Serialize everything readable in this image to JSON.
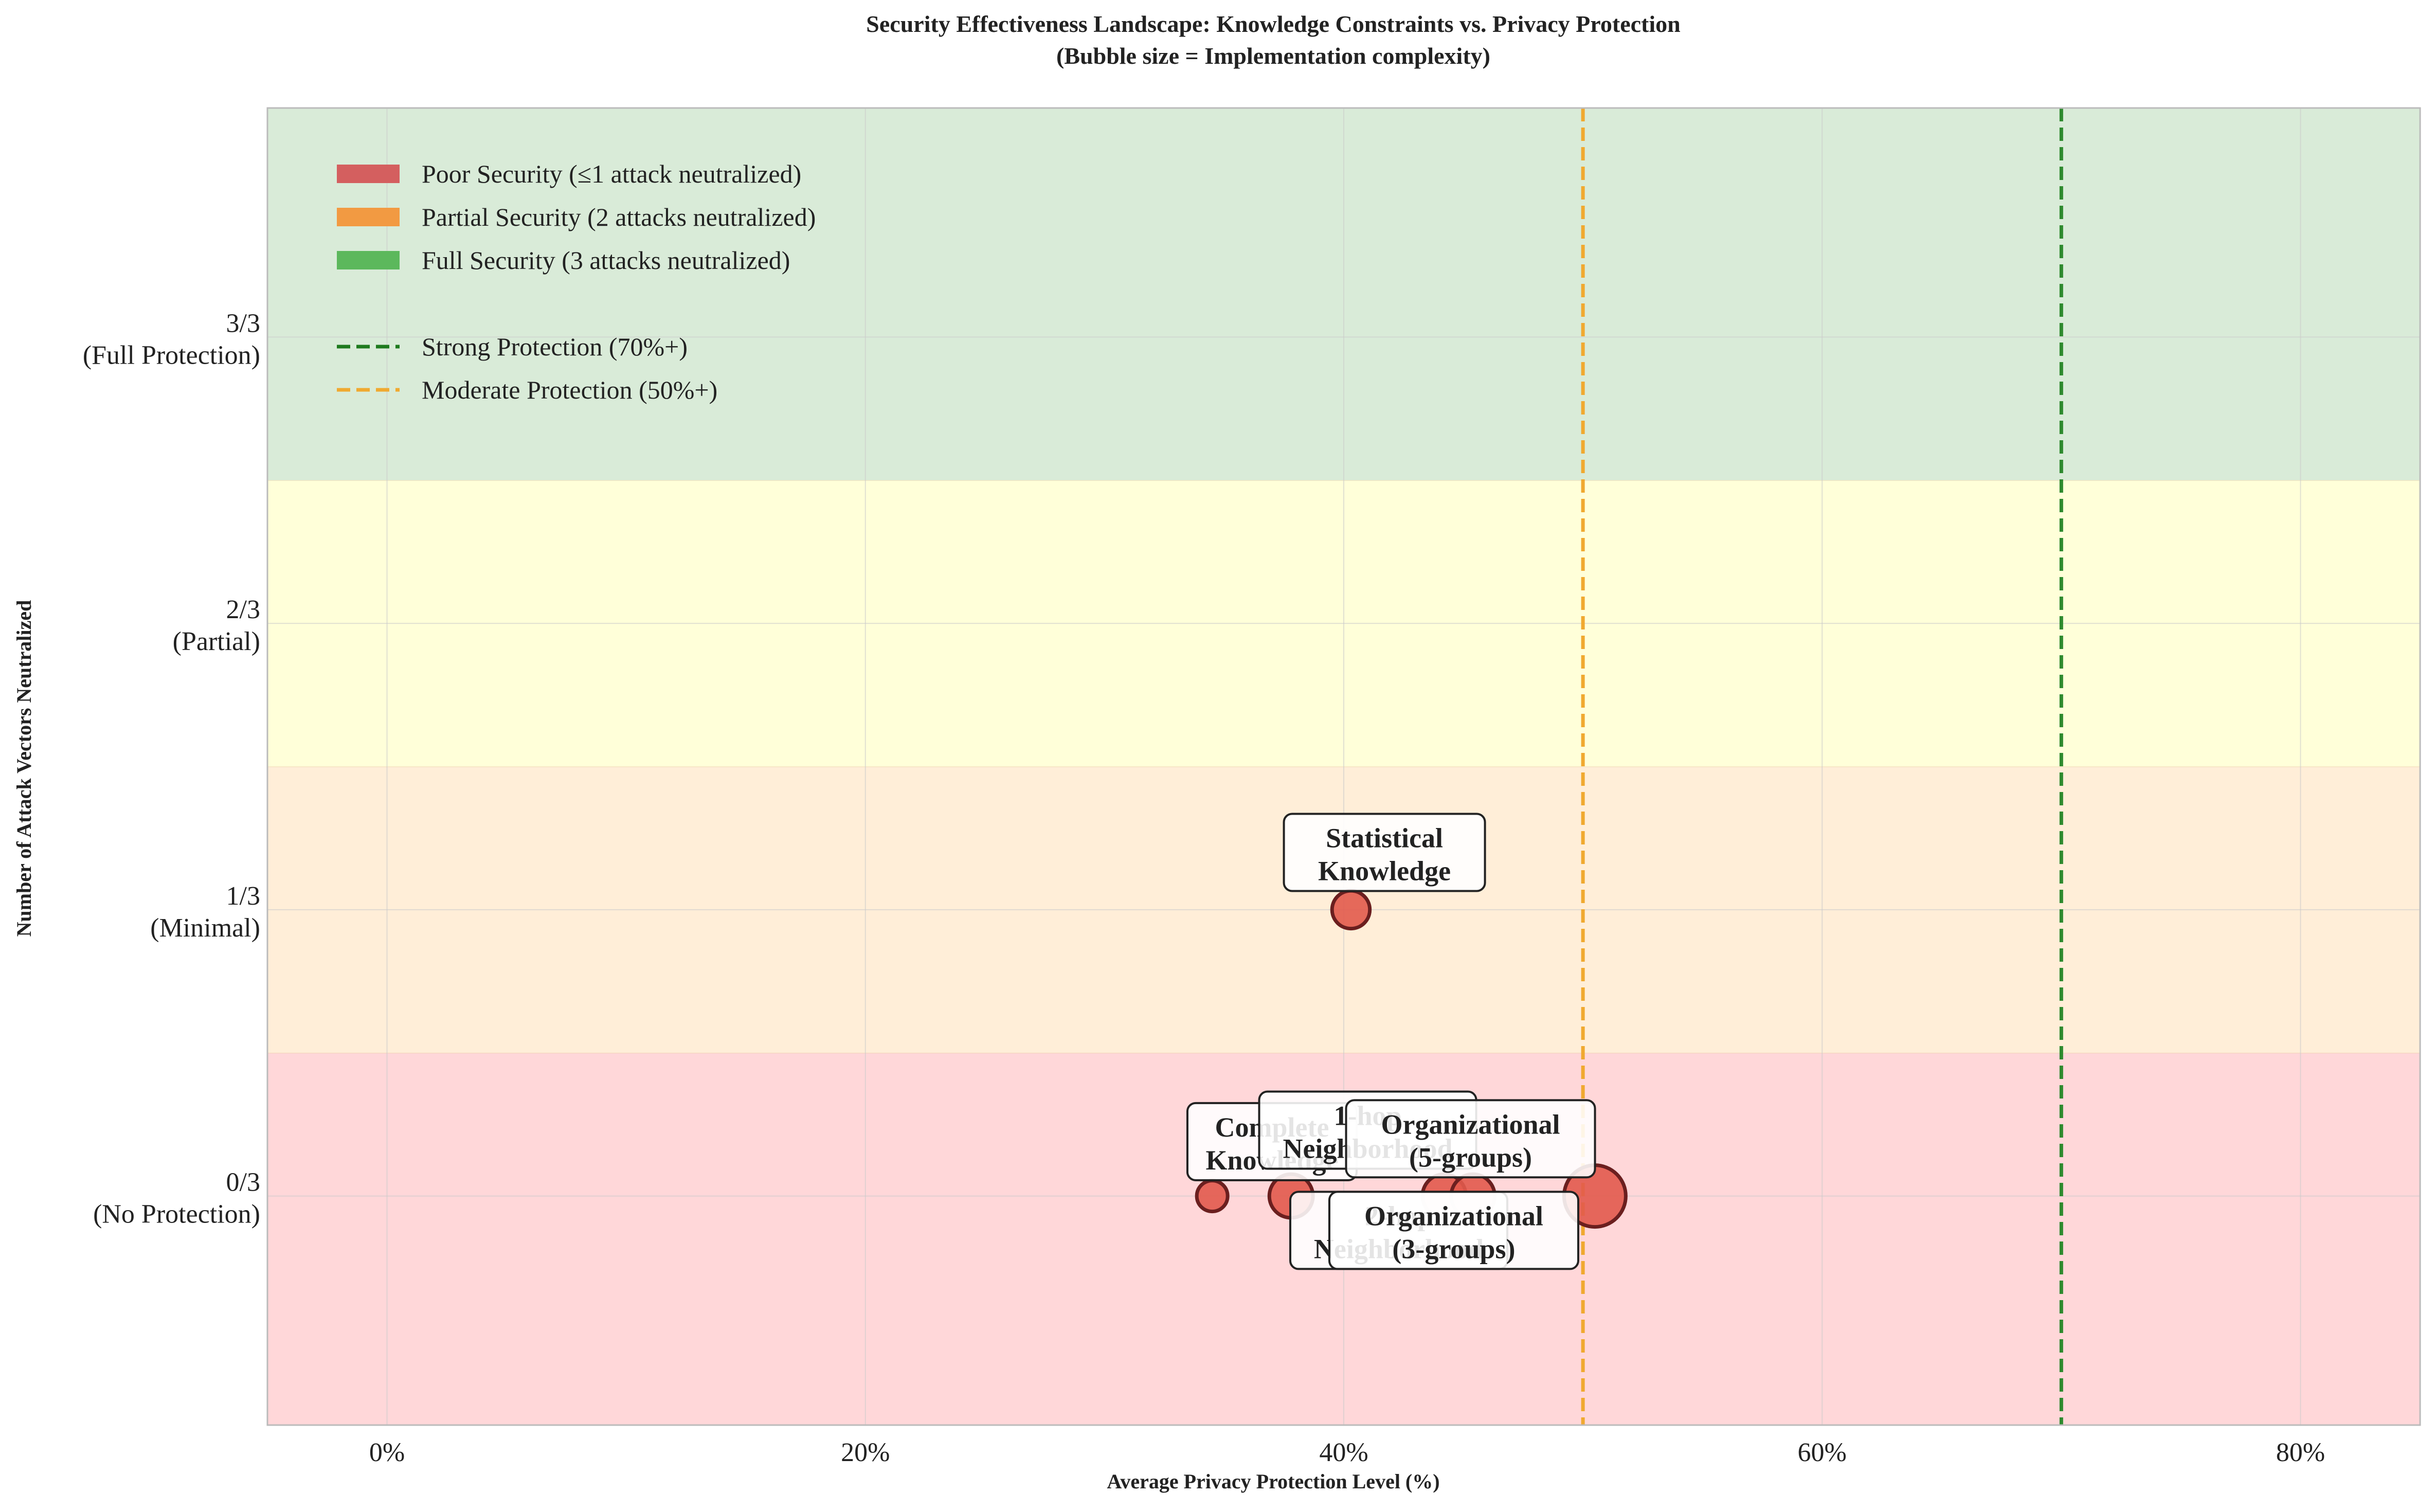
{
  "chart_data": {
    "type": "scatter",
    "title": "Security Effectiveness Landscape: Knowledge Constraints vs. Privacy Protection",
    "subtitle": "(Bubble size = Implementation complexity)",
    "xlabel": "Average Privacy Protection Level (%)",
    "ylabel": "Number of Attack Vectors Neutralized",
    "xlim": [
      -5,
      85
    ],
    "ylim": [
      -0.8,
      3.8
    ],
    "x_ticks": [
      0,
      20,
      40,
      60,
      80
    ],
    "x_tick_labels": [
      "0%",
      "20%",
      "40%",
      "60%",
      "80%"
    ],
    "y_ticks": [
      0,
      1,
      2,
      3
    ],
    "y_tick_labels": [
      [
        "0/3",
        "(No Protection)"
      ],
      [
        "1/3",
        "(Minimal)"
      ],
      [
        "2/3",
        "(Partial)"
      ],
      [
        "3/3",
        "(Full Protection)"
      ]
    ],
    "grid": true,
    "bands": [
      {
        "y0": -0.8,
        "y1": 0.5,
        "color": "#ffd7d9"
      },
      {
        "y0": 0.5,
        "y1": 1.5,
        "color": "#ffeed8"
      },
      {
        "y0": 1.5,
        "y1": 2.5,
        "color": "#ffffd9"
      },
      {
        "y0": 2.5,
        "y1": 3.8,
        "color": "#d9ebd8"
      }
    ],
    "thresholds": [
      {
        "x": 50,
        "label": "Moderate Protection (50%+)",
        "color": "#f0a930"
      },
      {
        "x": 70,
        "label": "Strong Protection (70%+)",
        "color": "#2e8a2e"
      }
    ],
    "points": [
      {
        "label": [
          "Complete",
          "Knowledge"
        ],
        "x": 34.5,
        "y": 0,
        "size": 1,
        "label_dx": 2.5,
        "label_dy": 0.19
      },
      {
        "label": [
          "2-hop",
          "Neighborhood"
        ],
        "x": 37.8,
        "y": 0,
        "size": 2,
        "label_dx": 4.5,
        "label_dy": -0.12
      },
      {
        "label": [
          "1-hop",
          "Neighborhood"
        ],
        "x": 44.2,
        "y": 0,
        "size": 2,
        "label_dx": -3.2,
        "label_dy": 0.23
      },
      {
        "label": [
          "Organizational",
          "(3-groups)"
        ],
        "x": 45.4,
        "y": 0,
        "size": 2,
        "label_dx": -0.8,
        "label_dy": -0.12
      },
      {
        "label": [
          "Organizational",
          "(5-groups)"
        ],
        "x": 50.5,
        "y": 0,
        "size": 4,
        "label_dx": -5.2,
        "label_dy": 0.2
      },
      {
        "label": [
          "Statistical",
          "Knowledge"
        ],
        "x": 40.3,
        "y": 1,
        "size": 1.5,
        "label_dx": 1.4,
        "label_dy": 0.2
      }
    ],
    "legend": {
      "position": "top-left",
      "entries": [
        {
          "kind": "patch",
          "label": "Poor Security (≤1 attack neutralized)",
          "color": "#d45f5f"
        },
        {
          "kind": "patch",
          "label": "Partial Security (2 attacks neutralized)",
          "color": "#f29a42"
        },
        {
          "kind": "patch",
          "label": "Full Security (3 attacks neutralized)",
          "color": "#5cb85c"
        },
        {
          "kind": "line",
          "label": "Strong Protection (70%+)",
          "color": "#1e7a1e"
        },
        {
          "kind": "line",
          "label": "Moderate Protection (50%+)",
          "color": "#f0a930"
        }
      ]
    },
    "colors": {
      "bubble_fill": "#e25a4c",
      "bubble_edge": "#6b1f1f",
      "grid": "#cccccc",
      "axes_edge": "#bbbbbb"
    }
  }
}
